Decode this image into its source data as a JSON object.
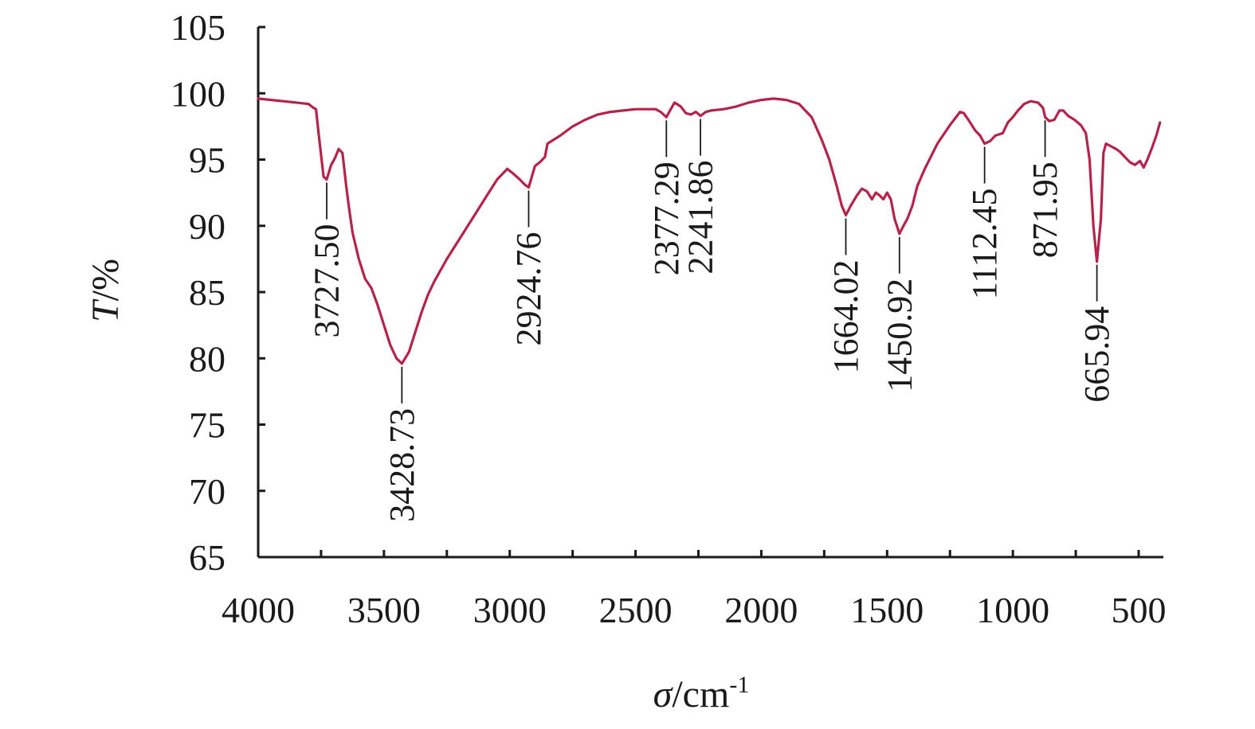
{
  "chart_data": {
    "type": "line",
    "x_axis": {
      "label_symbol": "σ",
      "label_unit": "/cm",
      "label_exp": "-1",
      "min": 4000,
      "max": 400,
      "reversed": true,
      "ticks": [
        4000,
        3500,
        3000,
        2500,
        2000,
        1500,
        1000,
        500
      ],
      "tick_labels": [
        "4000",
        "3500",
        "3000",
        "2500",
        "2000",
        "1500",
        "1000",
        "500"
      ]
    },
    "y_axis": {
      "label_symbol": "T",
      "label_unit": "/%",
      "min": 65,
      "max": 105,
      "ticks": [
        65,
        70,
        75,
        80,
        85,
        90,
        95,
        100,
        105
      ],
      "tick_labels": [
        "65",
        "70",
        "75",
        "80",
        "85",
        "90",
        "95",
        "100",
        "105"
      ]
    },
    "grid": false,
    "legend": "none",
    "series": [
      {
        "color": "#b5234a",
        "points": [
          [
            4000,
            99.6
          ],
          [
            3900,
            99.4
          ],
          [
            3800,
            99.2
          ],
          [
            3780,
            98.9
          ],
          [
            3770,
            98.8
          ],
          [
            3760,
            97.0
          ],
          [
            3748,
            95.0
          ],
          [
            3740,
            93.7
          ],
          [
            3727.5,
            93.5
          ],
          [
            3710,
            94.6
          ],
          [
            3695,
            95.1
          ],
          [
            3680,
            95.8
          ],
          [
            3665,
            95.5
          ],
          [
            3650,
            93.0
          ],
          [
            3640,
            91.5
          ],
          [
            3625,
            89.5
          ],
          [
            3600,
            87.5
          ],
          [
            3575,
            86.0
          ],
          [
            3550,
            85.3
          ],
          [
            3525,
            84.0
          ],
          [
            3500,
            82.5
          ],
          [
            3475,
            81.0
          ],
          [
            3450,
            80.0
          ],
          [
            3428.73,
            79.6
          ],
          [
            3400,
            80.5
          ],
          [
            3375,
            82.0
          ],
          [
            3350,
            83.5
          ],
          [
            3325,
            84.8
          ],
          [
            3300,
            85.8
          ],
          [
            3250,
            87.5
          ],
          [
            3200,
            89.0
          ],
          [
            3150,
            90.5
          ],
          [
            3100,
            92.0
          ],
          [
            3050,
            93.5
          ],
          [
            3010,
            94.3
          ],
          [
            2990,
            94.0
          ],
          [
            2960,
            93.5
          ],
          [
            2940,
            93.1
          ],
          [
            2924.76,
            92.9
          ],
          [
            2900,
            94.5
          ],
          [
            2880,
            94.8
          ],
          [
            2860,
            95.2
          ],
          [
            2850,
            96.2
          ],
          [
            2800,
            96.8
          ],
          [
            2750,
            97.5
          ],
          [
            2700,
            98.0
          ],
          [
            2650,
            98.4
          ],
          [
            2600,
            98.6
          ],
          [
            2500,
            98.8
          ],
          [
            2420,
            98.8
          ],
          [
            2400,
            98.6
          ],
          [
            2377.29,
            98.2
          ],
          [
            2360,
            98.8
          ],
          [
            2345,
            99.3
          ],
          [
            2320,
            99.0
          ],
          [
            2300,
            98.5
          ],
          [
            2280,
            98.4
          ],
          [
            2260,
            98.6
          ],
          [
            2241.86,
            98.3
          ],
          [
            2220,
            98.6
          ],
          [
            2200,
            98.7
          ],
          [
            2150,
            98.8
          ],
          [
            2100,
            99.0
          ],
          [
            2050,
            99.3
          ],
          [
            2000,
            99.5
          ],
          [
            1950,
            99.6
          ],
          [
            1900,
            99.5
          ],
          [
            1850,
            99.2
          ],
          [
            1800,
            98.2
          ],
          [
            1760,
            96.5
          ],
          [
            1730,
            95.0
          ],
          [
            1700,
            93.0
          ],
          [
            1680,
            91.5
          ],
          [
            1664.02,
            90.8
          ],
          [
            1645,
            91.5
          ],
          [
            1620,
            92.3
          ],
          [
            1600,
            92.8
          ],
          [
            1580,
            92.6
          ],
          [
            1560,
            92.0
          ],
          [
            1545,
            92.5
          ],
          [
            1530,
            92.3
          ],
          [
            1515,
            92.0
          ],
          [
            1500,
            92.5
          ],
          [
            1485,
            92.0
          ],
          [
            1470,
            90.5
          ],
          [
            1450.92,
            89.4
          ],
          [
            1435,
            90.0
          ],
          [
            1420,
            90.5
          ],
          [
            1400,
            91.5
          ],
          [
            1380,
            93.0
          ],
          [
            1350,
            94.3
          ],
          [
            1300,
            96.2
          ],
          [
            1250,
            97.6
          ],
          [
            1210,
            98.6
          ],
          [
            1195,
            98.5
          ],
          [
            1170,
            97.8
          ],
          [
            1150,
            97.2
          ],
          [
            1130,
            96.8
          ],
          [
            1112.45,
            96.2
          ],
          [
            1090,
            96.4
          ],
          [
            1070,
            96.8
          ],
          [
            1040,
            97.0
          ],
          [
            1020,
            97.8
          ],
          [
            1000,
            98.2
          ],
          [
            980,
            98.7
          ],
          [
            955,
            99.2
          ],
          [
            930,
            99.4
          ],
          [
            900,
            99.3
          ],
          [
            880,
            98.9
          ],
          [
            871.95,
            98.2
          ],
          [
            855,
            97.9
          ],
          [
            835,
            98.0
          ],
          [
            815,
            98.7
          ],
          [
            800,
            98.7
          ],
          [
            780,
            98.3
          ],
          [
            755,
            98.0
          ],
          [
            730,
            97.6
          ],
          [
            710,
            97.0
          ],
          [
            695,
            95.0
          ],
          [
            680,
            90.0
          ],
          [
            665.94,
            87.3
          ],
          [
            650,
            90.5
          ],
          [
            640,
            95.5
          ],
          [
            630,
            96.2
          ],
          [
            610,
            96.0
          ],
          [
            590,
            95.8
          ],
          [
            575,
            95.6
          ],
          [
            555,
            95.2
          ],
          [
            535,
            94.8
          ],
          [
            515,
            94.6
          ],
          [
            495,
            94.9
          ],
          [
            480,
            94.4
          ],
          [
            465,
            95.0
          ],
          [
            445,
            96.0
          ],
          [
            430,
            96.8
          ],
          [
            415,
            97.8
          ]
        ]
      }
    ],
    "annotations": [
      {
        "label": "3727.50",
        "x": 3727.5,
        "y": 93.5
      },
      {
        "label": "3428.73",
        "x": 3428.73,
        "y": 79.6
      },
      {
        "label": "2924.76",
        "x": 2924.76,
        "y": 92.9
      },
      {
        "label": "2377.29",
        "x": 2377.29,
        "y": 98.2
      },
      {
        "label": "2241.86",
        "x": 2241.86,
        "y": 98.3
      },
      {
        "label": "1664.02",
        "x": 1664.02,
        "y": 90.8
      },
      {
        "label": "1450.92",
        "x": 1450.92,
        "y": 89.4
      },
      {
        "label": "1112.45",
        "x": 1112.45,
        "y": 96.2
      },
      {
        "label": "871.95",
        "x": 871.95,
        "y": 98.2
      },
      {
        "label": "665.94",
        "x": 665.94,
        "y": 87.3
      }
    ]
  }
}
